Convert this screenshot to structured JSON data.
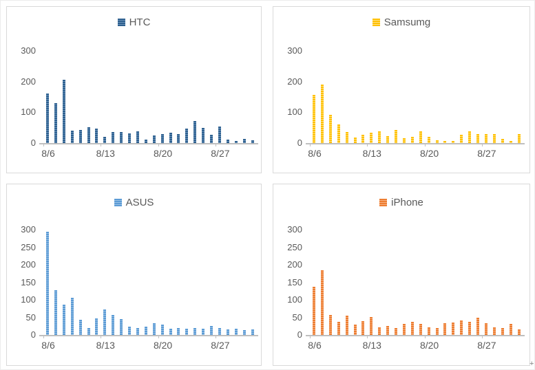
{
  "page": {
    "plus_handle": "+"
  },
  "chart_data": [
    {
      "type": "bar",
      "title": "HTC",
      "legend_label": "HTC",
      "legend_position": "top",
      "grid": false,
      "color": "#2e608f",
      "color_light": "#6b93ba",
      "ylim": [
        0,
        300
      ],
      "y_ticks": [
        0,
        100,
        200,
        300
      ],
      "x_tick_labels": [
        "8/6",
        "8/13",
        "8/20",
        "8/27"
      ],
      "x_tick_indices": [
        0,
        7,
        14,
        21
      ],
      "categories": [
        "8/6",
        "8/7",
        "8/8",
        "8/9",
        "8/10",
        "8/11",
        "8/12",
        "8/13",
        "8/14",
        "8/15",
        "8/16",
        "8/17",
        "8/18",
        "8/19",
        "8/20",
        "8/21",
        "8/22",
        "8/23",
        "8/24",
        "8/25",
        "8/26",
        "8/27",
        "8/28",
        "8/29",
        "8/30",
        "8/31"
      ],
      "values": [
        160,
        130,
        205,
        40,
        42,
        52,
        48,
        20,
        36,
        36,
        31,
        38,
        12,
        25,
        30,
        34,
        28,
        48,
        72,
        50,
        26,
        53,
        12,
        6,
        14,
        8
      ]
    },
    {
      "type": "bar",
      "title": "Samsumg",
      "legend_label": "Samsumg",
      "legend_position": "top",
      "grid": false,
      "color": "#ffc000",
      "color_light": "#ffe28a",
      "ylim": [
        0,
        300
      ],
      "y_ticks": [
        0,
        100,
        200,
        300
      ],
      "x_tick_labels": [
        "8/6",
        "8/13",
        "8/20",
        "8/27"
      ],
      "x_tick_indices": [
        0,
        7,
        14,
        21
      ],
      "categories": [
        "8/6",
        "8/7",
        "8/8",
        "8/9",
        "8/10",
        "8/11",
        "8/12",
        "8/13",
        "8/14",
        "8/15",
        "8/16",
        "8/17",
        "8/18",
        "8/19",
        "8/20",
        "8/21",
        "8/22",
        "8/23",
        "8/24",
        "8/25",
        "8/26",
        "8/27",
        "8/28",
        "8/29",
        "8/30",
        "8/31"
      ],
      "values": [
        157,
        190,
        92,
        60,
        35,
        19,
        26,
        33,
        37,
        23,
        42,
        15,
        20,
        37,
        21,
        8,
        6,
        7,
        27,
        39,
        28,
        30,
        28,
        14,
        7,
        30
      ]
    },
    {
      "type": "bar",
      "title": "ASUS",
      "legend_label": "ASUS",
      "legend_position": "top",
      "grid": false,
      "color": "#5b9bd5",
      "color_light": "#9cc2e5",
      "ylim": [
        0,
        300
      ],
      "y_ticks": [
        0,
        50,
        100,
        150,
        200,
        250,
        300
      ],
      "x_tick_labels": [
        "8/6",
        "8/13",
        "8/20",
        "8/27"
      ],
      "x_tick_indices": [
        0,
        7,
        14,
        21
      ],
      "categories": [
        "8/6",
        "8/7",
        "8/8",
        "8/9",
        "8/10",
        "8/11",
        "8/12",
        "8/13",
        "8/14",
        "8/15",
        "8/16",
        "8/17",
        "8/18",
        "8/19",
        "8/20",
        "8/21",
        "8/22",
        "8/23",
        "8/24",
        "8/25",
        "8/26",
        "8/27",
        "8/28",
        "8/29",
        "8/30",
        "8/31"
      ],
      "values": [
        295,
        127,
        86,
        105,
        44,
        19,
        47,
        73,
        57,
        46,
        24,
        19,
        24,
        34,
        30,
        17,
        20,
        17,
        20,
        17,
        26,
        19,
        15,
        17,
        13,
        15
      ]
    },
    {
      "type": "bar",
      "title": "iPhone",
      "legend_label": "iPhone",
      "legend_position": "top",
      "grid": false,
      "color": "#ed7d31",
      "color_light": "#f6b183",
      "ylim": [
        0,
        300
      ],
      "y_ticks": [
        0,
        50,
        100,
        150,
        200,
        250,
        300
      ],
      "x_tick_labels": [
        "8/6",
        "8/13",
        "8/20",
        "8/27"
      ],
      "x_tick_indices": [
        0,
        7,
        14,
        21
      ],
      "categories": [
        "8/6",
        "8/7",
        "8/8",
        "8/9",
        "8/10",
        "8/11",
        "8/12",
        "8/13",
        "8/14",
        "8/15",
        "8/16",
        "8/17",
        "8/18",
        "8/19",
        "8/20",
        "8/21",
        "8/22",
        "8/23",
        "8/24",
        "8/25",
        "8/26",
        "8/27",
        "8/28",
        "8/29",
        "8/30",
        "8/31"
      ],
      "values": [
        137,
        185,
        57,
        37,
        54,
        30,
        40,
        50,
        22,
        26,
        19,
        31,
        38,
        31,
        22,
        20,
        33,
        36,
        42,
        38,
        49,
        34,
        22,
        19,
        31,
        16
      ]
    }
  ]
}
